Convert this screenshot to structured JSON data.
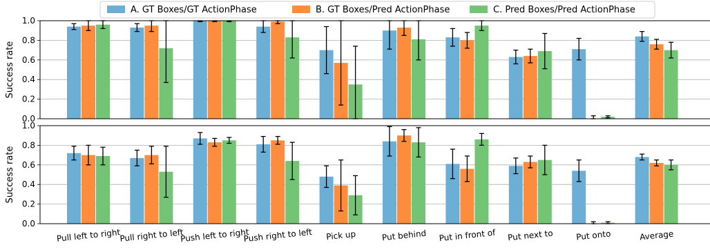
{
  "chart_data": {
    "type": "bar",
    "ylabel": "Success rate",
    "ylim": [
      0,
      1.0
    ],
    "yticks": [
      "0.0",
      "0.2",
      "0.4",
      "0.6",
      "0.8",
      "1.0"
    ],
    "grid": "horizontal",
    "legend_position": "top",
    "categories": [
      "Pull left to right",
      "Pull right to left",
      "Push left to right",
      "Push right to left",
      "Pick up",
      "Put behind",
      "Put in front of",
      "Put next to",
      "Put onto",
      "Average"
    ],
    "series_meta": [
      {
        "name": "A. GT Boxes/GT ActionPhase",
        "color": "#6baed6"
      },
      {
        "name": "B. GT Boxes/Pred ActionPhase",
        "color": "#fd8d3c"
      },
      {
        "name": "C. Pred Boxes/Pred ActionPhase",
        "color": "#74c476"
      }
    ],
    "panels": [
      {
        "series": [
          {
            "name": "A. GT Boxes/GT ActionPhase",
            "values": [
              0.94,
              0.93,
              1.0,
              0.94,
              0.7,
              0.9,
              0.83,
              0.63,
              0.71,
              0.84
            ],
            "errors": [
              0.03,
              0.04,
              0.01,
              0.06,
              0.24,
              0.19,
              0.09,
              0.07,
              0.11,
              0.05
            ]
          },
          {
            "name": "B. GT Boxes/Pred ActionPhase",
            "values": [
              0.95,
              0.95,
              1.0,
              0.99,
              0.57,
              0.93,
              0.8,
              0.64,
              0.0,
              0.76
            ],
            "errors": [
              0.05,
              0.06,
              0.01,
              0.02,
              0.43,
              0.08,
              0.08,
              0.07,
              0.03,
              0.05
            ]
          },
          {
            "name": "C. Pred Boxes/Pred ActionPhase",
            "values": [
              0.96,
              0.72,
              1.0,
              0.83,
              0.35,
              0.81,
              0.95,
              0.69,
              0.02,
              0.7
            ],
            "errors": [
              0.04,
              0.35,
              0.01,
              0.21,
              0.39,
              0.21,
              0.05,
              0.18,
              0.01,
              0.08
            ]
          }
        ]
      },
      {
        "series": [
          {
            "name": "A. GT Boxes/GT ActionPhase",
            "values": [
              0.72,
              0.67,
              0.87,
              0.81,
              0.48,
              0.84,
              0.61,
              0.59,
              0.54,
              0.68
            ],
            "errors": [
              0.07,
              0.08,
              0.06,
              0.08,
              0.11,
              0.15,
              0.15,
              0.08,
              0.11,
              0.03
            ]
          },
          {
            "name": "B. GT Boxes/Pred ActionPhase",
            "values": [
              0.7,
              0.7,
              0.83,
              0.85,
              0.39,
              0.9,
              0.56,
              0.63,
              0.0,
              0.62
            ],
            "errors": [
              0.1,
              0.09,
              0.04,
              0.04,
              0.26,
              0.06,
              0.13,
              0.06,
              0.02,
              0.03
            ]
          },
          {
            "name": "C. Pred Boxes/Pred ActionPhase",
            "values": [
              0.69,
              0.53,
              0.85,
              0.64,
              0.29,
              0.83,
              0.86,
              0.65,
              0.01,
              0.6
            ],
            "errors": [
              0.09,
              0.26,
              0.03,
              0.19,
              0.2,
              0.15,
              0.06,
              0.15,
              0.01,
              0.05
            ]
          }
        ]
      }
    ]
  }
}
